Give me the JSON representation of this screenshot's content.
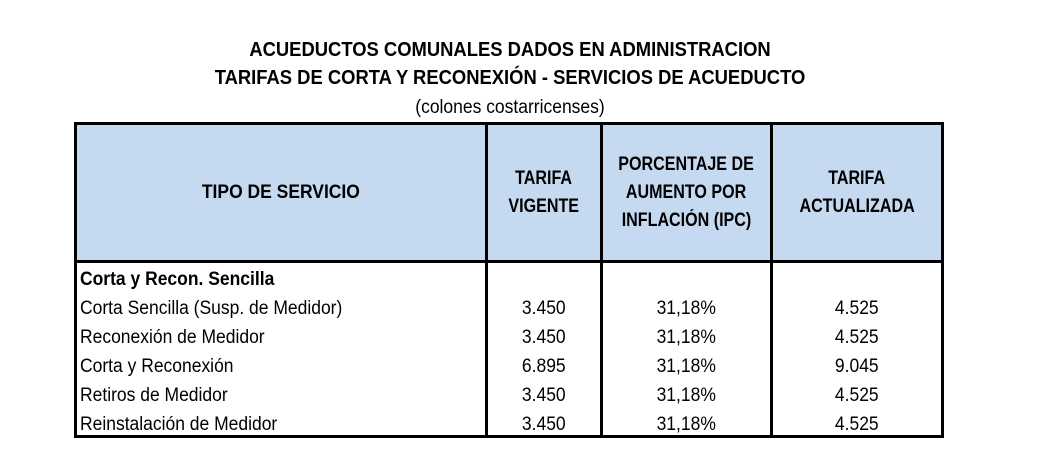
{
  "title_line1": "ACUEDUCTOS COMUNALES DADOS EN ADMINISTRACION",
  "title_line2": "TARIFAS DE CORTA Y RECONEXIÓN - SERVICIOS  DE ACUEDUCTO",
  "subtitle": "(colones costarricenses)",
  "headers": {
    "tipo": "TIPO DE SERVICIO",
    "vigente_1": "TARIFA",
    "vigente_2": "VIGENTE",
    "ipc_1": "PORCENTAJE DE",
    "ipc_2": "AUMENTO POR",
    "ipc_3": "INFLACIÓN (IPC)",
    "actualizada_1": "TARIFA",
    "actualizada_2": "ACTUALIZADA"
  },
  "section_title": "Corta y Recon. Sencilla",
  "rows": [
    {
      "servicio": "Corta Sencilla (Susp. de Medidor)",
      "vigente": "3.450",
      "ipc": "31,18%",
      "actualizada": "4.525"
    },
    {
      "servicio": "Reconexión de Medidor",
      "vigente": "3.450",
      "ipc": "31,18%",
      "actualizada": "4.525"
    },
    {
      "servicio": "Corta y Reconexión",
      "vigente": "6.895",
      "ipc": "31,18%",
      "actualizada": "9.045"
    },
    {
      "servicio": "Retiros de Medidor",
      "vigente": "3.450",
      "ipc": "31,18%",
      "actualizada": "4.525"
    },
    {
      "servicio": "Reinstalación de Medidor",
      "vigente": "3.450",
      "ipc": "31,18%",
      "actualizada": "4.525"
    }
  ],
  "colors": {
    "header_fill": "#c5d9f1",
    "border": "#000000"
  }
}
